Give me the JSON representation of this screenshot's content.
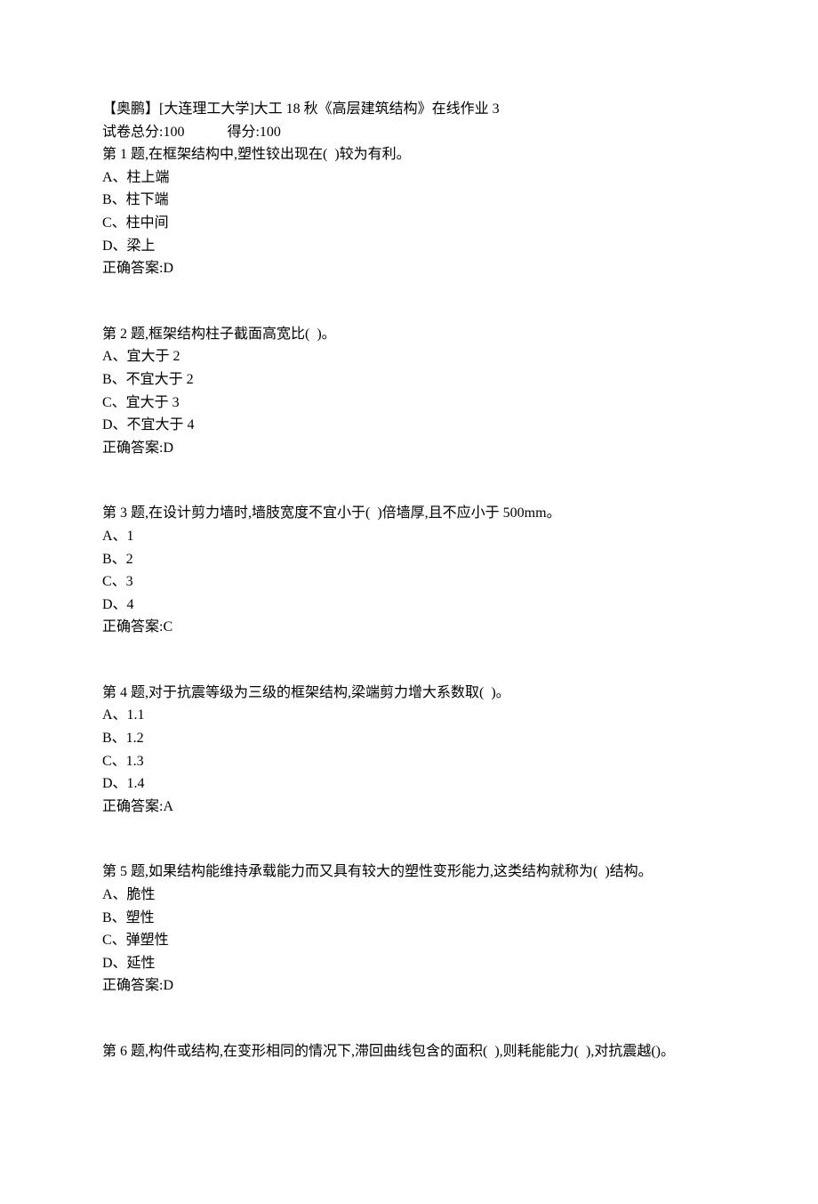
{
  "header": {
    "title": "【奥鹏】[大连理工大学]大工 18 秋《高层建筑结构》在线作业 3",
    "score_label": "试卷总分:100",
    "result_label": "得分:100"
  },
  "questions": [
    {
      "number": "第 1 题",
      "text": ",在框架结构中,塑性铰出现在(  )较为有利。",
      "options": [
        "A、柱上端",
        "B、柱下端",
        "C、柱中间",
        "D、梁上"
      ],
      "answer": "正确答案:D"
    },
    {
      "number": "第 2 题",
      "text": ",框架结构柱子截面高宽比(  )。",
      "options": [
        "A、宜大于 2",
        "B、不宜大于 2",
        "C、宜大于 3",
        "D、不宜大于 4"
      ],
      "answer": "正确答案:D"
    },
    {
      "number": "第 3 题",
      "text": ",在设计剪力墙时,墙肢宽度不宜小于(  )倍墙厚,且不应小于 500mm。",
      "options": [
        "A、1",
        "B、2",
        "C、3",
        "D、4"
      ],
      "answer": "正确答案:C"
    },
    {
      "number": "第 4 题",
      "text": ",对于抗震等级为三级的框架结构,梁端剪力增大系数取(  )。",
      "options": [
        "A、1.1",
        "B、1.2",
        "C、1.3",
        "D、1.4"
      ],
      "answer": "正确答案:A"
    },
    {
      "number": "第 5 题",
      "text": ",如果结构能维持承载能力而又具有较大的塑性变形能力,这类结构就称为(  )结构。",
      "options": [
        "A、脆性",
        "B、塑性",
        "C、弹塑性",
        "D、延性"
      ],
      "answer": "正确答案:D"
    },
    {
      "number": "第 6 题",
      "text": ",构件或结构,在变形相同的情况下,滞回曲线包含的面积(  ),则耗能能力(  ),对抗震越()。",
      "options": [],
      "answer": null
    }
  ]
}
